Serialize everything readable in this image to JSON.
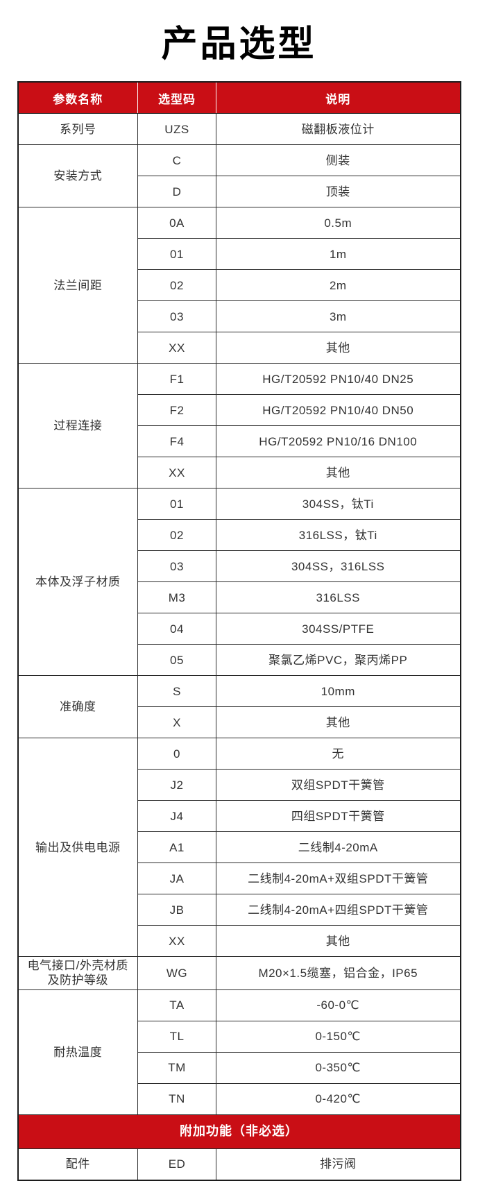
{
  "page": {
    "title": "产品选型"
  },
  "colors": {
    "accent_red": "#c90e15",
    "header_text": "#ffffff",
    "body_text": "#333333",
    "border": "#2a2a2a"
  },
  "table": {
    "headers": [
      {
        "label": "参数名称"
      },
      {
        "label": "选型码"
      },
      {
        "label": "说明"
      }
    ],
    "groups": [
      {
        "param": "系列号",
        "rows": [
          {
            "code": "UZS",
            "desc": "磁翻板液位计"
          }
        ]
      },
      {
        "param": "安装方式",
        "rows": [
          {
            "code": "C",
            "desc": "侧装"
          },
          {
            "code": "D",
            "desc": "顶装"
          }
        ]
      },
      {
        "param": "法兰间距",
        "rows": [
          {
            "code": "0A",
            "desc": "0.5m"
          },
          {
            "code": "01",
            "desc": "1m"
          },
          {
            "code": "02",
            "desc": "2m"
          },
          {
            "code": "03",
            "desc": "3m"
          },
          {
            "code": "XX",
            "desc": "其他"
          }
        ]
      },
      {
        "param": "过程连接",
        "rows": [
          {
            "code": "F1",
            "desc": "HG/T20592 PN10/40 DN25"
          },
          {
            "code": "F2",
            "desc": "HG/T20592 PN10/40 DN50"
          },
          {
            "code": "F4",
            "desc": "HG/T20592 PN10/16 DN100"
          },
          {
            "code": "XX",
            "desc": "其他"
          }
        ]
      },
      {
        "param": "本体及浮子材质",
        "rows": [
          {
            "code": "01",
            "desc": "304SS，钛Ti"
          },
          {
            "code": "02",
            "desc": "316LSS，钛Ti"
          },
          {
            "code": "03",
            "desc": "304SS，316LSS"
          },
          {
            "code": "M3",
            "desc": "316LSS"
          },
          {
            "code": "04",
            "desc": "304SS/PTFE"
          },
          {
            "code": "05",
            "desc": "聚氯乙烯PVC，聚丙烯PP"
          }
        ]
      },
      {
        "param": "准确度",
        "rows": [
          {
            "code": "S",
            "desc": "10mm"
          },
          {
            "code": "X",
            "desc": "其他"
          }
        ]
      },
      {
        "param": "输出及供电电源",
        "rows": [
          {
            "code": "0",
            "desc": "无"
          },
          {
            "code": "J2",
            "desc": "双组SPDT干簧管"
          },
          {
            "code": "J4",
            "desc": "四组SPDT干簧管"
          },
          {
            "code": "A1",
            "desc": "二线制4-20mA"
          },
          {
            "code": "JA",
            "desc": "二线制4-20mA+双组SPDT干簧管"
          },
          {
            "code": "JB",
            "desc": "二线制4-20mA+四组SPDT干簧管"
          },
          {
            "code": "XX",
            "desc": "其他"
          }
        ]
      },
      {
        "param": "电气接口/外壳材质及防护等级",
        "rows": [
          {
            "code": "WG",
            "desc": "M20×1.5缆塞，铝合金，IP65"
          }
        ]
      },
      {
        "param": "耐热温度",
        "rows": [
          {
            "code": "TA",
            "desc": "-60-0℃"
          },
          {
            "code": "TL",
            "desc": "0-150℃"
          },
          {
            "code": "TM",
            "desc": "0-350℃"
          },
          {
            "code": "TN",
            "desc": "0-420℃"
          }
        ]
      }
    ],
    "banner": "附加功能（非必选）",
    "extra_groups": [
      {
        "param": "配件",
        "rows": [
          {
            "code": "ED",
            "desc": "排污阀"
          }
        ]
      }
    ]
  }
}
